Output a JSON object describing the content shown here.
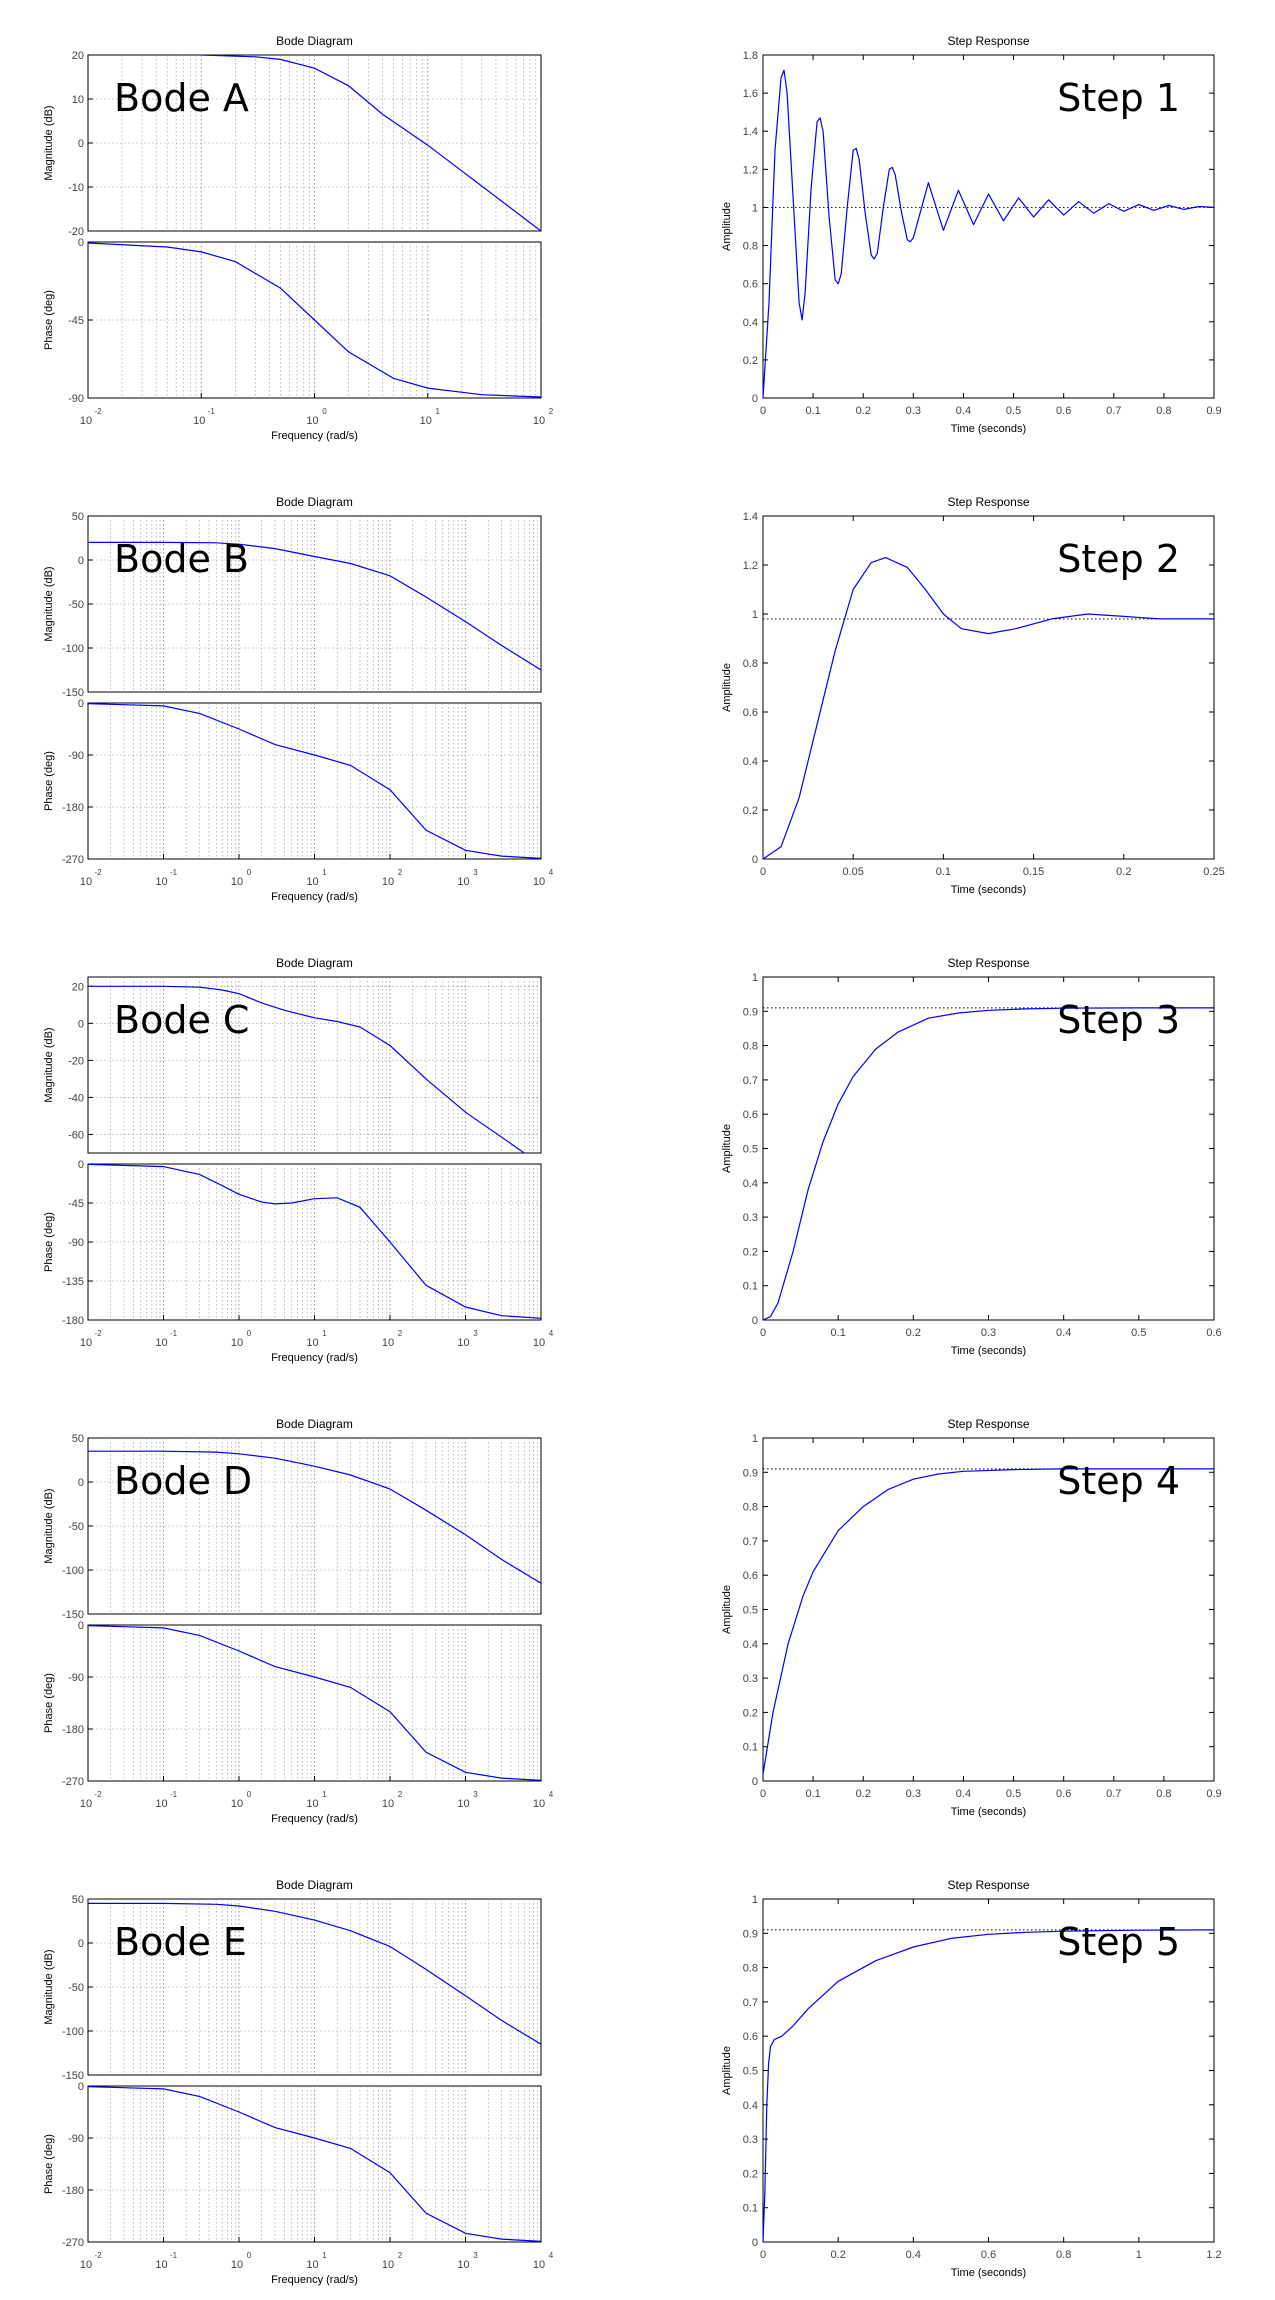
{
  "chart_data": [
    {
      "id": "bode-a",
      "type": "line",
      "title": "Bode Diagram",
      "label": "Bode A",
      "xlabel": "Frequency  (rad/s)",
      "xscale": "log",
      "xlim": [
        0.01,
        100
      ],
      "x_ticks": [
        {
          "base": "10",
          "exp": "-2"
        },
        {
          "base": "10",
          "exp": "-1"
        },
        {
          "base": "10",
          "exp": "0"
        },
        {
          "base": "10",
          "exp": "1"
        },
        {
          "base": "10",
          "exp": "2"
        }
      ],
      "magnitude": {
        "ylabel": "Magnitude (dB)",
        "ylim": [
          -20,
          20
        ],
        "yticks": [
          "20",
          "10",
          "0",
          "-10",
          "-20"
        ],
        "x": [
          0.1,
          0.3,
          0.5,
          1,
          2,
          4,
          10,
          100
        ],
        "y": [
          20,
          19.6,
          19,
          17,
          13,
          6.5,
          -0.5,
          -20
        ]
      },
      "phase": {
        "ylabel": "Phase (deg)",
        "ylim": [
          -90,
          0
        ],
        "yticks": [
          "0",
          "-45",
          "-90"
        ],
        "x": [
          0.01,
          0.05,
          0.1,
          0.2,
          0.5,
          1,
          2,
          5,
          10,
          30,
          100
        ],
        "y": [
          -0.6,
          -2.9,
          -5.7,
          -11.3,
          -26.6,
          -45,
          -63.4,
          -78.7,
          -84.3,
          -88.1,
          -89.4
        ]
      },
      "grid": true
    },
    {
      "id": "bode-b",
      "type": "line",
      "title": "Bode Diagram",
      "label": "Bode B",
      "xlabel": "Frequency  (rad/s)",
      "xscale": "log",
      "xlim": [
        0.01,
        10000
      ],
      "x_ticks": [
        {
          "base": "10",
          "exp": "-2"
        },
        {
          "base": "10",
          "exp": "-1"
        },
        {
          "base": "10",
          "exp": "0"
        },
        {
          "base": "10",
          "exp": "1"
        },
        {
          "base": "10",
          "exp": "2"
        },
        {
          "base": "10",
          "exp": "3"
        },
        {
          "base": "10",
          "exp": "4"
        }
      ],
      "magnitude": {
        "ylabel": "Magnitude (dB)",
        "ylim": [
          -150,
          50
        ],
        "yticks": [
          "50",
          "0",
          "-50",
          "-100",
          "-150"
        ],
        "x": [
          0.01,
          0.1,
          0.5,
          1,
          3,
          10,
          30,
          100,
          300,
          1000,
          3000,
          10000
        ],
        "y": [
          20,
          20,
          19.5,
          18,
          13,
          4,
          -4,
          -18,
          -42,
          -70,
          -97,
          -125
        ]
      },
      "phase": {
        "ylabel": "Phase (deg)",
        "ylim": [
          -270,
          0
        ],
        "yticks": [
          "0",
          "-90",
          "-180",
          "-270"
        ],
        "x": [
          0.01,
          0.1,
          0.3,
          1,
          3,
          10,
          30,
          100,
          300,
          1000,
          3000,
          10000
        ],
        "y": [
          -1,
          -5,
          -18,
          -45,
          -72,
          -90,
          -108,
          -150,
          -220,
          -255,
          -265,
          -269
        ]
      },
      "grid": true
    },
    {
      "id": "bode-c",
      "type": "line",
      "title": "Bode Diagram",
      "label": "Bode C",
      "xlabel": "Frequency  (rad/s)",
      "xscale": "log",
      "xlim": [
        0.01,
        10000
      ],
      "x_ticks": [
        {
          "base": "10",
          "exp": "-2"
        },
        {
          "base": "10",
          "exp": "-1"
        },
        {
          "base": "10",
          "exp": "0"
        },
        {
          "base": "10",
          "exp": "1"
        },
        {
          "base": "10",
          "exp": "2"
        },
        {
          "base": "10",
          "exp": "3"
        },
        {
          "base": "10",
          "exp": "4"
        }
      ],
      "magnitude": {
        "ylabel": "Magnitude (dB)",
        "ylim": [
          -70,
          25
        ],
        "yticks": [
          "20",
          "0",
          "-20",
          "-40",
          "-60"
        ],
        "x": [
          0.01,
          0.1,
          0.3,
          0.6,
          1,
          2,
          4,
          10,
          20,
          40,
          100,
          300,
          1000,
          4000,
          6000
        ],
        "y": [
          20,
          20,
          19.5,
          18,
          16,
          11,
          7,
          3,
          1,
          -2,
          -12,
          -30,
          -48,
          -65,
          -70
        ]
      },
      "phase": {
        "ylabel": "Phase (deg)",
        "ylim": [
          -180,
          0
        ],
        "yticks": [
          "0",
          "-45",
          "-90",
          "-135",
          "-180"
        ],
        "x": [
          0.01,
          0.1,
          0.3,
          0.6,
          1,
          2,
          3,
          5,
          10,
          20,
          40,
          100,
          300,
          1000,
          3000,
          10000
        ],
        "y": [
          -0.5,
          -3,
          -12,
          -25,
          -35,
          -44,
          -46,
          -45,
          -40,
          -39,
          -50,
          -90,
          -140,
          -165,
          -175,
          -178
        ]
      },
      "grid": true
    },
    {
      "id": "bode-d",
      "type": "line",
      "title": "Bode Diagram",
      "label": "Bode D",
      "xlabel": "Frequency  (rad/s)",
      "xscale": "log",
      "xlim": [
        0.01,
        10000
      ],
      "x_ticks": [
        {
          "base": "10",
          "exp": "-2"
        },
        {
          "base": "10",
          "exp": "-1"
        },
        {
          "base": "10",
          "exp": "0"
        },
        {
          "base": "10",
          "exp": "1"
        },
        {
          "base": "10",
          "exp": "2"
        },
        {
          "base": "10",
          "exp": "3"
        },
        {
          "base": "10",
          "exp": "4"
        }
      ],
      "magnitude": {
        "ylabel": "Magnitude (dB)",
        "ylim": [
          -150,
          50
        ],
        "yticks": [
          "50",
          "0",
          "-50",
          "-100",
          "-150"
        ],
        "x": [
          0.01,
          0.1,
          0.5,
          1,
          3,
          10,
          30,
          100,
          300,
          1000,
          3000,
          10000
        ],
        "y": [
          35,
          35,
          34,
          32,
          27,
          18,
          8,
          -8,
          -32,
          -60,
          -88,
          -115
        ]
      },
      "phase": {
        "ylabel": "Phase (deg)",
        "ylim": [
          -270,
          0
        ],
        "yticks": [
          "0",
          "-90",
          "-180",
          "-270"
        ],
        "x": [
          0.01,
          0.1,
          0.3,
          1,
          3,
          10,
          30,
          100,
          300,
          1000,
          3000,
          10000
        ],
        "y": [
          -1,
          -5,
          -18,
          -45,
          -72,
          -90,
          -108,
          -150,
          -220,
          -255,
          -265,
          -269
        ]
      },
      "grid": true
    },
    {
      "id": "bode-e",
      "type": "line",
      "title": "Bode Diagram",
      "label": "Bode E",
      "xlabel": "Frequency  (rad/s)",
      "xscale": "log",
      "xlim": [
        0.01,
        10000
      ],
      "x_ticks": [
        {
          "base": "10",
          "exp": "-2"
        },
        {
          "base": "10",
          "exp": "-1"
        },
        {
          "base": "10",
          "exp": "0"
        },
        {
          "base": "10",
          "exp": "1"
        },
        {
          "base": "10",
          "exp": "2"
        },
        {
          "base": "10",
          "exp": "3"
        },
        {
          "base": "10",
          "exp": "4"
        }
      ],
      "magnitude": {
        "ylabel": "Magnitude (dB)",
        "ylim": [
          -150,
          50
        ],
        "yticks": [
          "50",
          "0",
          "-50",
          "-100",
          "-150"
        ],
        "x": [
          0.01,
          0.1,
          0.5,
          1,
          3,
          10,
          30,
          100,
          300,
          1000,
          3000,
          10000
        ],
        "y": [
          45,
          45,
          44,
          42,
          36,
          26,
          14,
          -4,
          -30,
          -60,
          -88,
          -115
        ]
      },
      "phase": {
        "ylabel": "Phase (deg)",
        "ylim": [
          -270,
          0
        ],
        "yticks": [
          "0",
          "-90",
          "-180",
          "-270"
        ],
        "x": [
          0.01,
          0.1,
          0.3,
          1,
          3,
          10,
          30,
          100,
          300,
          1000,
          3000,
          10000
        ],
        "y": [
          -1,
          -5,
          -18,
          -45,
          -72,
          -90,
          -108,
          -150,
          -220,
          -255,
          -265,
          -269
        ]
      },
      "grid": true
    },
    {
      "id": "step-1",
      "type": "line",
      "title": "Step Response",
      "label": "Step 1",
      "xlabel": "Time (seconds)",
      "ylabel": "Amplitude",
      "xlim": [
        0,
        0.9
      ],
      "ylim": [
        0,
        1.8
      ],
      "final_value": 1,
      "xticks": [
        "0",
        "0.1",
        "0.2",
        "0.3",
        "0.4",
        "0.5",
        "0.6",
        "0.7",
        "0.8",
        "0.9"
      ],
      "yticks": [
        "0",
        "0.2",
        "0.4",
        "0.6",
        "0.8",
        "1",
        "1.2",
        "1.4",
        "1.6",
        "1.8"
      ],
      "x": [
        0,
        0.012,
        0.024,
        0.036,
        0.042,
        0.048,
        0.06,
        0.072,
        0.078,
        0.084,
        0.096,
        0.108,
        0.114,
        0.12,
        0.132,
        0.144,
        0.15,
        0.156,
        0.168,
        0.18,
        0.186,
        0.192,
        0.204,
        0.216,
        0.222,
        0.228,
        0.24,
        0.252,
        0.258,
        0.264,
        0.276,
        0.288,
        0.294,
        0.3,
        0.33,
        0.36,
        0.39,
        0.42,
        0.45,
        0.48,
        0.51,
        0.54,
        0.57,
        0.6,
        0.63,
        0.66,
        0.69,
        0.72,
        0.75,
        0.78,
        0.81,
        0.84,
        0.87,
        0.9
      ],
      "y": [
        0,
        0.5,
        1.3,
        1.68,
        1.72,
        1.6,
        1.05,
        0.5,
        0.41,
        0.55,
        1.1,
        1.45,
        1.47,
        1.4,
        0.95,
        0.62,
        0.6,
        0.65,
        1.0,
        1.3,
        1.31,
        1.25,
        0.97,
        0.75,
        0.73,
        0.76,
        1.0,
        1.2,
        1.21,
        1.17,
        0.98,
        0.83,
        0.82,
        0.84,
        1.13,
        0.88,
        1.09,
        0.91,
        1.07,
        0.93,
        1.05,
        0.95,
        1.04,
        0.96,
        1.03,
        0.97,
        1.02,
        0.98,
        1.015,
        0.985,
        1.01,
        0.99,
        1.005,
        1.0
      ],
      "grid": false
    },
    {
      "id": "step-2",
      "type": "line",
      "title": "Step Response",
      "label": "Step 2",
      "xlabel": "Time (seconds)",
      "ylabel": "Amplitude",
      "xlim": [
        0,
        0.25
      ],
      "ylim": [
        0,
        1.4
      ],
      "final_value": 0.98,
      "xticks": [
        "0",
        "0.05",
        "0.1",
        "0.15",
        "0.2",
        "0.25"
      ],
      "yticks": [
        "0",
        "0.2",
        "0.4",
        "0.6",
        "0.8",
        "1",
        "1.2",
        "1.4"
      ],
      "x": [
        0,
        0.01,
        0.02,
        0.03,
        0.04,
        0.05,
        0.06,
        0.068,
        0.08,
        0.09,
        0.1,
        0.11,
        0.125,
        0.14,
        0.16,
        0.18,
        0.2,
        0.22,
        0.25
      ],
      "y": [
        0,
        0.05,
        0.25,
        0.55,
        0.85,
        1.1,
        1.21,
        1.23,
        1.19,
        1.1,
        1.0,
        0.94,
        0.92,
        0.94,
        0.98,
        1.0,
        0.99,
        0.98,
        0.98
      ],
      "grid": false
    },
    {
      "id": "step-3",
      "type": "line",
      "title": "Step Response",
      "label": "Step 3",
      "xlabel": "Time (seconds)",
      "ylabel": "Amplitude",
      "xlim": [
        0,
        0.6
      ],
      "ylim": [
        0,
        1
      ],
      "final_value": 0.91,
      "xticks": [
        "0",
        "0.1",
        "0.2",
        "0.3",
        "0.4",
        "0.5",
        "0.6"
      ],
      "yticks": [
        "0",
        "0.1",
        "0.2",
        "0.3",
        "0.4",
        "0.5",
        "0.6",
        "0.7",
        "0.8",
        "0.9",
        "1"
      ],
      "x": [
        0,
        0.01,
        0.02,
        0.04,
        0.06,
        0.08,
        0.1,
        0.12,
        0.15,
        0.18,
        0.22,
        0.26,
        0.3,
        0.35,
        0.4,
        0.5,
        0.6
      ],
      "y": [
        0,
        0.01,
        0.05,
        0.2,
        0.38,
        0.52,
        0.63,
        0.71,
        0.79,
        0.84,
        0.88,
        0.895,
        0.903,
        0.907,
        0.909,
        0.91,
        0.91
      ],
      "grid": false
    },
    {
      "id": "step-4",
      "type": "line",
      "title": "Step Response",
      "label": "Step 4",
      "xlabel": "Time (seconds)",
      "ylabel": "Amplitude",
      "xlim": [
        0,
        0.9
      ],
      "ylim": [
        0,
        1
      ],
      "final_value": 0.91,
      "xticks": [
        "0",
        "0.1",
        "0.2",
        "0.3",
        "0.4",
        "0.5",
        "0.6",
        "0.7",
        "0.8",
        "0.9"
      ],
      "yticks": [
        "0",
        "0.1",
        "0.2",
        "0.3",
        "0.4",
        "0.5",
        "0.6",
        "0.7",
        "0.8",
        "0.9",
        "1"
      ],
      "x": [
        0,
        0.02,
        0.05,
        0.08,
        0.1,
        0.15,
        0.2,
        0.25,
        0.3,
        0.35,
        0.4,
        0.5,
        0.6,
        0.7,
        0.9
      ],
      "y": [
        0.02,
        0.2,
        0.4,
        0.54,
        0.61,
        0.73,
        0.8,
        0.85,
        0.88,
        0.895,
        0.903,
        0.908,
        0.91,
        0.91,
        0.91
      ],
      "grid": false
    },
    {
      "id": "step-5",
      "type": "line",
      "title": "Step Response",
      "label": "Step 5",
      "xlabel": "Time (seconds)",
      "ylabel": "Amplitude",
      "xlim": [
        0,
        1.2
      ],
      "ylim": [
        0,
        1
      ],
      "final_value": 0.91,
      "xticks": [
        "0",
        "0.2",
        "0.4",
        "0.6",
        "0.8",
        "1",
        "1.2"
      ],
      "yticks": [
        "0",
        "0.1",
        "0.2",
        "0.3",
        "0.4",
        "0.5",
        "0.6",
        "0.7",
        "0.8",
        "0.9",
        "1"
      ],
      "x": [
        0,
        0.005,
        0.01,
        0.015,
        0.02,
        0.03,
        0.05,
        0.08,
        0.12,
        0.2,
        0.3,
        0.4,
        0.5,
        0.6,
        0.7,
        0.8,
        1.0,
        1.2
      ],
      "y": [
        0,
        0.15,
        0.4,
        0.52,
        0.57,
        0.59,
        0.6,
        0.63,
        0.68,
        0.76,
        0.82,
        0.86,
        0.885,
        0.897,
        0.903,
        0.906,
        0.909,
        0.91
      ],
      "grid": false
    }
  ],
  "colors": {
    "line": "#0000ff",
    "axis": "#000000",
    "grid": "#8c8c8c",
    "text": "#000000",
    "tick_text": "#444444"
  }
}
